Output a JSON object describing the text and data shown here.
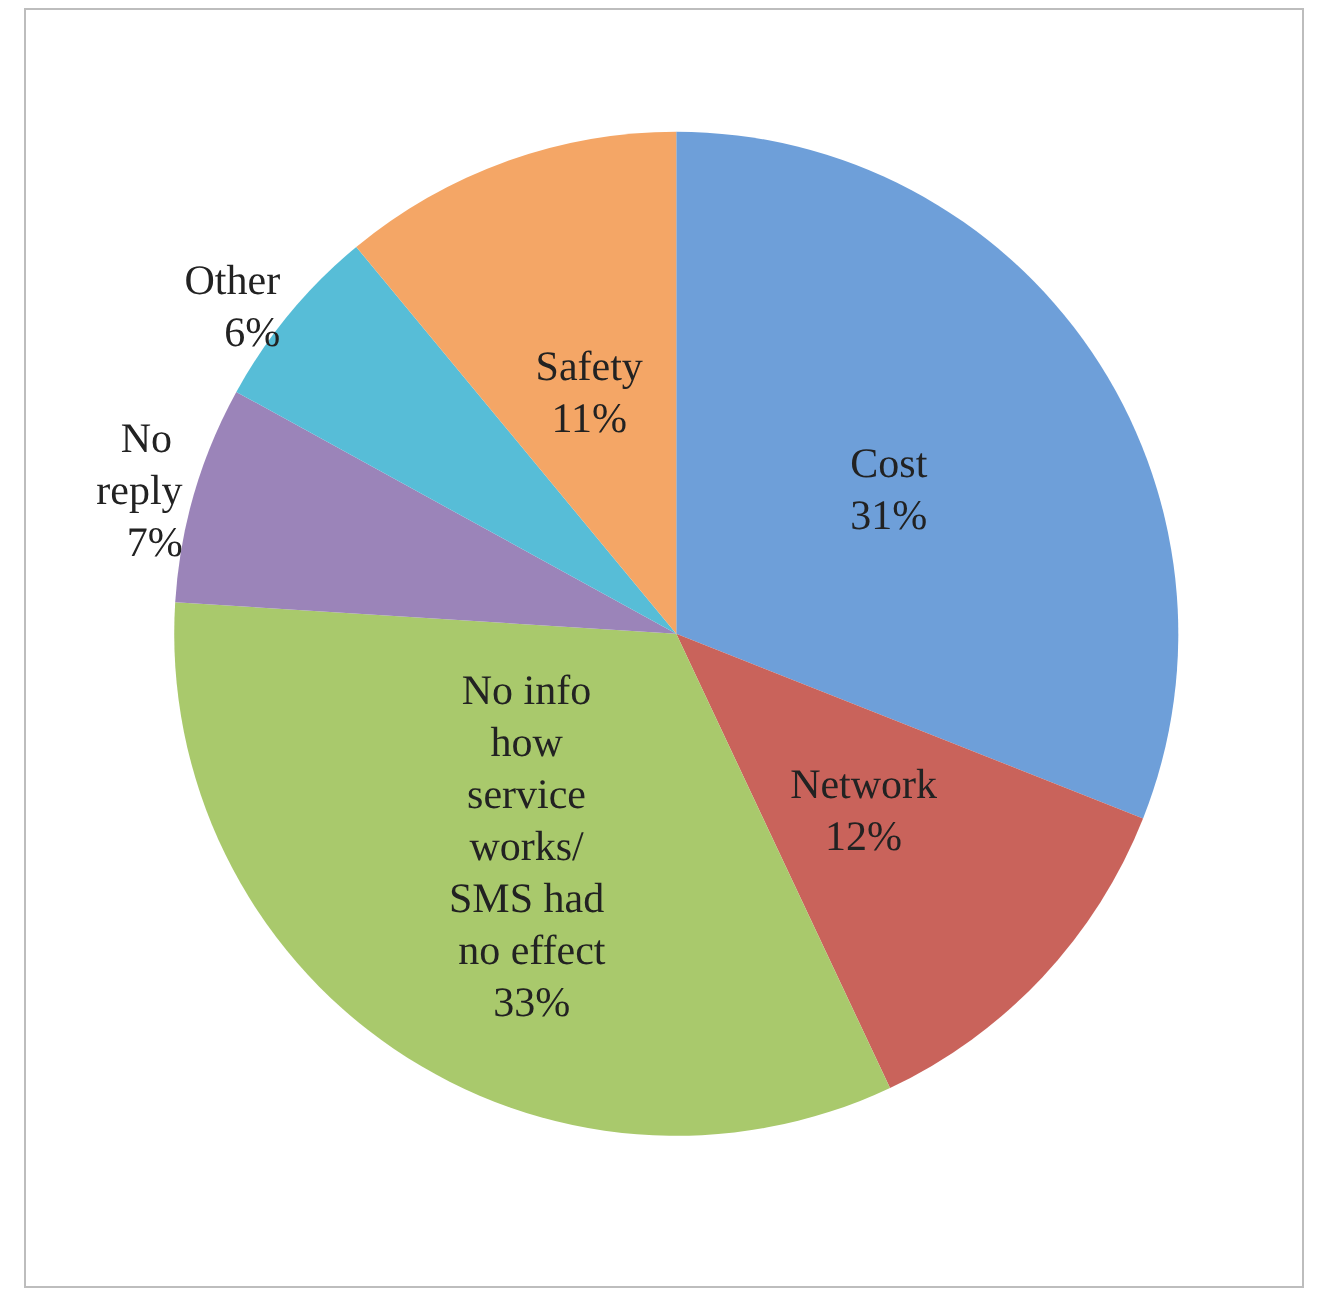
{
  "chart_data": {
    "type": "pie",
    "categories": [
      "Cost",
      "Network",
      "No info how service works/ SMS had no effect",
      "No reply",
      "Other",
      "Safety"
    ],
    "values": [
      31,
      12,
      33,
      7,
      6,
      11
    ],
    "value_labels": [
      "31%",
      "12%",
      "33%",
      "7%",
      "6%",
      "11%"
    ],
    "colors": [
      "#6e9fd9",
      "#c9635b",
      "#a9c96c",
      "#9b84b9",
      "#57bdd7",
      "#f4a666"
    ],
    "legend": false
  }
}
